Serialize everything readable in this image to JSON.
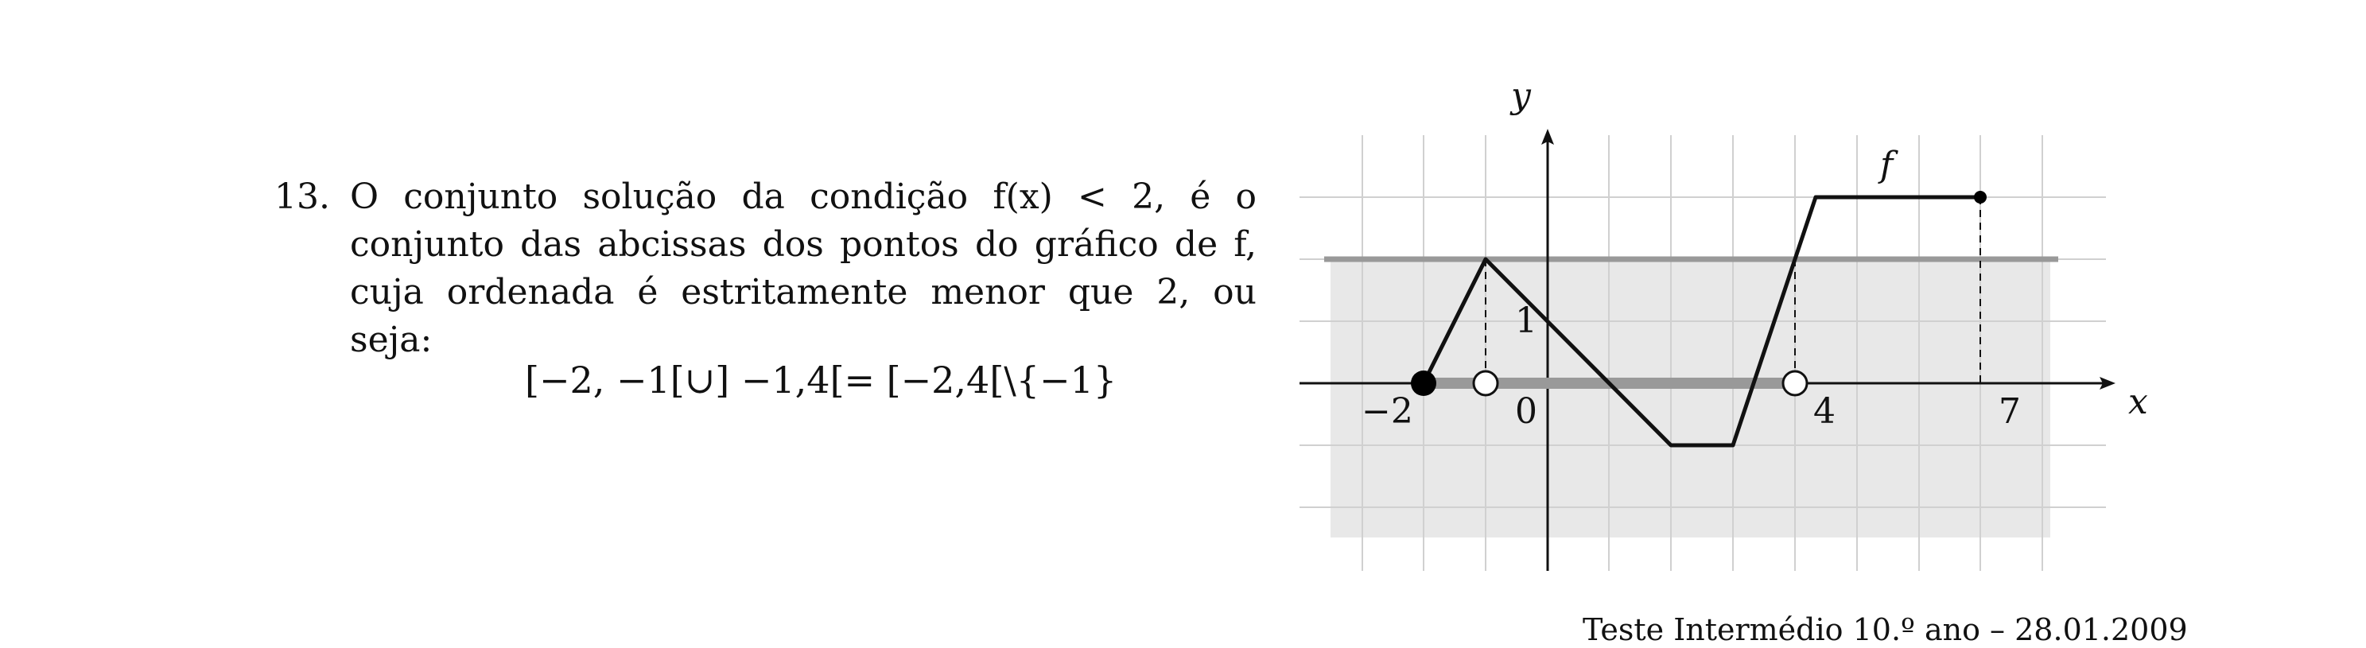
{
  "problem": {
    "number": "13.",
    "text": "O conjunto solução da condição f(x) < 2, é o conjunto das abcissas dos pontos do gráfico de f, cuja ordenada é estritamente menor que 2, ou seja:",
    "solution": "[−2, −1[∪] −1,4[= [−2,4[\\{−1}"
  },
  "graph": {
    "x_axis_label": "x",
    "y_axis_label": "y",
    "function_label": "f",
    "tick_labels": [
      "−2",
      "0",
      "1",
      "4",
      "7"
    ]
  },
  "footer": "Teste Intermédio 10.º ano – 28.01.2009",
  "colors": {
    "shade": "#e8e8e8",
    "grid": "#d0d0d0",
    "highlight": "#999999",
    "curve": "#111111"
  }
}
